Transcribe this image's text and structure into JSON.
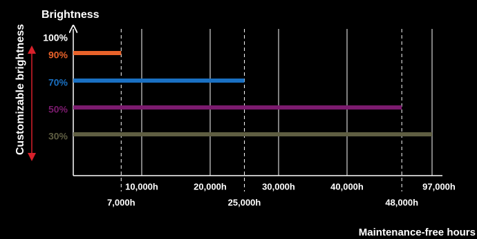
{
  "chart_data": {
    "type": "bar",
    "orientation": "horizontal",
    "title": "Brightness",
    "y_label": "Customizable brightness",
    "x_label": "Maintenance-free hours",
    "top_label": "100%",
    "categories": [
      "90%",
      "70%",
      "50%",
      "30%"
    ],
    "values": [
      7000,
      25000,
      48000,
      97000
    ],
    "colors": [
      "#e8622a",
      "#1a70c2",
      "#7b1b6e",
      "#5f5e42"
    ],
    "xlim": [
      0,
      97000
    ],
    "xticks": [
      {
        "value": 10000,
        "label": "10,000h"
      },
      {
        "value": 20000,
        "label": "20,000h"
      },
      {
        "value": 30000,
        "label": "30,000h"
      },
      {
        "value": 40000,
        "label": "40,000h"
      },
      {
        "value": 97000,
        "label": "97,000h"
      }
    ],
    "xticks_dashed": [
      {
        "value": 7000,
        "label": "7,000h"
      },
      {
        "value": 25000,
        "label": "25,000h"
      },
      {
        "value": 48000,
        "label": "48,000h"
      }
    ]
  }
}
